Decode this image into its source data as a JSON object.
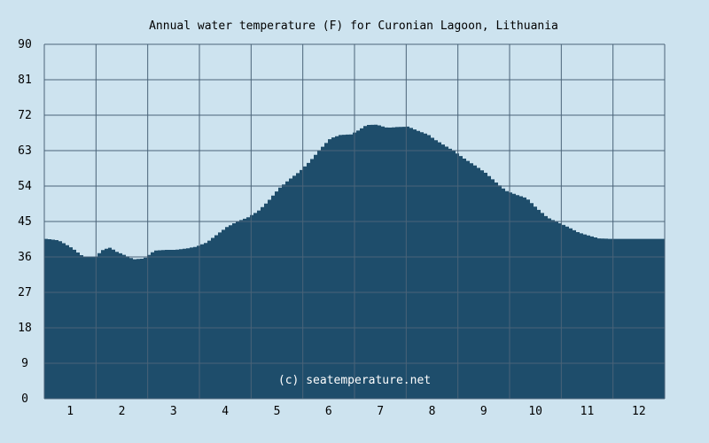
{
  "chart_data": {
    "type": "area",
    "title": "Annual water temperature (F) for Curonian Lagoon, Lithuania",
    "xlabel": "",
    "ylabel": "",
    "ylim": [
      0,
      90
    ],
    "yticks": [
      0,
      9,
      18,
      27,
      36,
      45,
      54,
      63,
      72,
      81,
      90
    ],
    "xlim": [
      0.5,
      12.5
    ],
    "xticks": [
      1,
      2,
      3,
      4,
      5,
      6,
      7,
      8,
      9,
      10,
      11,
      12
    ],
    "grid": true,
    "annotation": "(c) seatemperature.net",
    "colors": {
      "background": "#cde3ef",
      "area": "#1e4d6b",
      "grid": "#4a6378"
    },
    "series": [
      {
        "x": [
          0.5,
          0.75,
          1.0,
          1.2,
          1.3,
          1.45,
          1.6,
          1.75,
          1.85,
          2.0,
          2.2,
          2.4,
          2.6,
          2.8,
          3.0,
          3.2,
          3.4,
          3.6,
          3.8,
          4.0,
          4.2,
          4.4,
          4.6,
          4.8,
          5.0,
          5.2,
          5.4,
          5.6,
          5.8,
          6.0,
          6.2,
          6.4,
          6.55,
          6.7,
          6.9,
          7.1,
          7.3,
          7.5,
          7.7,
          7.9,
          8.0,
          8.2,
          8.4,
          8.6,
          8.8,
          9.0,
          9.2,
          9.4,
          9.6,
          9.8,
          10.0,
          10.2,
          10.4,
          10.6,
          10.8,
          11.0,
          11.2,
          11.4,
          11.6,
          11.8,
          12.0,
          12.2,
          12.5
        ],
        "values": [
          40.6,
          40.2,
          38.3,
          36.3,
          35.9,
          36.0,
          37.8,
          38.4,
          37.4,
          36.6,
          35.4,
          35.6,
          37.6,
          37.8,
          37.8,
          38.1,
          38.6,
          39.6,
          41.6,
          43.6,
          45.0,
          46.0,
          47.6,
          50.2,
          53.3,
          55.6,
          57.6,
          60.2,
          63.3,
          66.1,
          67.0,
          67.1,
          68.2,
          69.5,
          69.6,
          68.8,
          69.0,
          69.1,
          68.0,
          67.0,
          66.0,
          64.4,
          62.8,
          60.9,
          59.2,
          57.4,
          55.0,
          52.8,
          51.8,
          50.9,
          48.3,
          46.0,
          44.8,
          43.6,
          42.2,
          41.4,
          40.7,
          40.6,
          40.6,
          40.6,
          40.6,
          40.6,
          40.6
        ]
      }
    ]
  }
}
